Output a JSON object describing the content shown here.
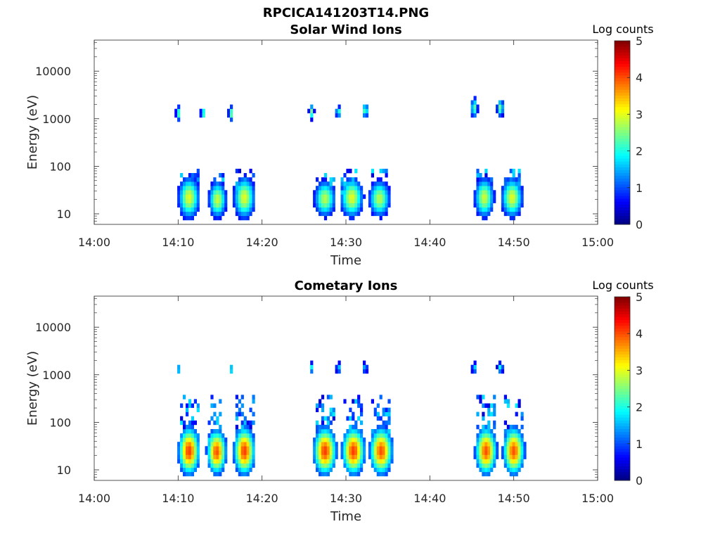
{
  "figure": {
    "title": "RPCICA141203T14.PNG"
  },
  "chart_data": [
    {
      "type": "heatmap",
      "title": "Solar Wind Ions",
      "xlabel": "Time",
      "ylabel": "Energy (eV)",
      "x_ticks": [
        "14:00",
        "14:10",
        "14:20",
        "14:30",
        "14:40",
        "14:50",
        "15:00"
      ],
      "x_range_minutes": [
        0,
        60
      ],
      "y_scale": "log",
      "y_ticks": [
        "10",
        "100",
        "1000",
        "10000"
      ],
      "y_range": [
        6,
        45000
      ],
      "colorbar": {
        "label": "Log counts",
        "ticks": [
          "0",
          "1",
          "2",
          "3",
          "4",
          "5"
        ],
        "range": [
          0,
          5
        ],
        "colormap": "jet"
      },
      "blobs": [
        {
          "t": 11.3,
          "tw": 1.2,
          "e": 22,
          "ed": 2.6,
          "peak": 3.0
        },
        {
          "t": 14.7,
          "tw": 1.0,
          "e": 20,
          "ed": 2.3,
          "peak": 2.9
        },
        {
          "t": 17.9,
          "tw": 1.2,
          "e": 22,
          "ed": 2.6,
          "peak": 3.0
        },
        {
          "t": 27.5,
          "tw": 1.2,
          "e": 21,
          "ed": 2.3,
          "peak": 2.8
        },
        {
          "t": 30.7,
          "tw": 1.3,
          "e": 22,
          "ed": 2.5,
          "peak": 3.0
        },
        {
          "t": 34.0,
          "tw": 1.2,
          "e": 21,
          "ed": 2.3,
          "peak": 2.8
        },
        {
          "t": 46.5,
          "tw": 1.1,
          "e": 22,
          "ed": 2.5,
          "peak": 2.9
        },
        {
          "t": 49.8,
          "tw": 1.2,
          "e": 22,
          "ed": 2.5,
          "peak": 3.0
        },
        {
          "t": 10.0,
          "tw": 0.25,
          "e": 1300,
          "ed": 1.4,
          "peak": 2.5
        },
        {
          "t": 13.0,
          "tw": 0.3,
          "e": 1300,
          "ed": 1.3,
          "peak": 2.4
        },
        {
          "t": 16.3,
          "tw": 0.3,
          "e": 1300,
          "ed": 1.4,
          "peak": 2.5
        },
        {
          "t": 25.9,
          "tw": 0.3,
          "e": 1400,
          "ed": 1.4,
          "peak": 2.5
        },
        {
          "t": 29.1,
          "tw": 0.3,
          "e": 1400,
          "ed": 1.3,
          "peak": 2.4
        },
        {
          "t": 32.3,
          "tw": 0.35,
          "e": 1500,
          "ed": 1.4,
          "peak": 2.5
        },
        {
          "t": 45.3,
          "tw": 0.4,
          "e": 1700,
          "ed": 1.6,
          "peak": 2.4
        },
        {
          "t": 48.4,
          "tw": 0.4,
          "e": 1700,
          "ed": 1.5,
          "peak": 2.5
        }
      ]
    },
    {
      "type": "heatmap",
      "title": "Cometary Ions",
      "xlabel": "Time",
      "ylabel": "Energy (eV)",
      "x_ticks": [
        "14:00",
        "14:10",
        "14:20",
        "14:30",
        "14:40",
        "14:50",
        "15:00"
      ],
      "x_range_minutes": [
        0,
        60
      ],
      "y_scale": "log",
      "y_ticks": [
        "10",
        "100",
        "1000",
        "10000"
      ],
      "y_range": [
        6,
        45000
      ],
      "colorbar": {
        "label": "Log counts",
        "ticks": [
          "0",
          "1",
          "2",
          "3",
          "4",
          "5"
        ],
        "range": [
          0,
          5
        ],
        "colormap": "jet"
      },
      "blobs": [
        {
          "t": 11.3,
          "tw": 1.2,
          "e": 25,
          "ed": 3.0,
          "peak": 4.1
        },
        {
          "t": 14.6,
          "tw": 1.1,
          "e": 24,
          "ed": 2.8,
          "peak": 4.0
        },
        {
          "t": 17.9,
          "tw": 1.2,
          "e": 25,
          "ed": 3.0,
          "peak": 4.1
        },
        {
          "t": 27.5,
          "tw": 1.3,
          "e": 25,
          "ed": 3.0,
          "peak": 4.1
        },
        {
          "t": 30.9,
          "tw": 1.3,
          "e": 25,
          "ed": 3.0,
          "peak": 4.1
        },
        {
          "t": 34.2,
          "tw": 1.3,
          "e": 25,
          "ed": 3.0,
          "peak": 4.0
        },
        {
          "t": 46.7,
          "tw": 1.2,
          "e": 25,
          "ed": 3.0,
          "peak": 4.0
        },
        {
          "t": 50.0,
          "tw": 1.2,
          "e": 25,
          "ed": 3.0,
          "peak": 4.0
        },
        {
          "t": 10.0,
          "tw": 0.2,
          "e": 1300,
          "ed": 1.3,
          "peak": 2.0
        },
        {
          "t": 16.3,
          "tw": 0.25,
          "e": 1300,
          "ed": 1.3,
          "peak": 2.0
        },
        {
          "t": 25.9,
          "tw": 0.25,
          "e": 1400,
          "ed": 1.3,
          "peak": 1.9
        },
        {
          "t": 29.1,
          "tw": 0.25,
          "e": 1400,
          "ed": 1.3,
          "peak": 2.0
        },
        {
          "t": 32.3,
          "tw": 0.25,
          "e": 1400,
          "ed": 1.3,
          "peak": 1.9
        },
        {
          "t": 45.3,
          "tw": 0.3,
          "e": 1400,
          "ed": 1.3,
          "peak": 1.8
        },
        {
          "t": 48.4,
          "tw": 0.35,
          "e": 1400,
          "ed": 1.3,
          "peak": 2.0
        }
      ]
    }
  ]
}
